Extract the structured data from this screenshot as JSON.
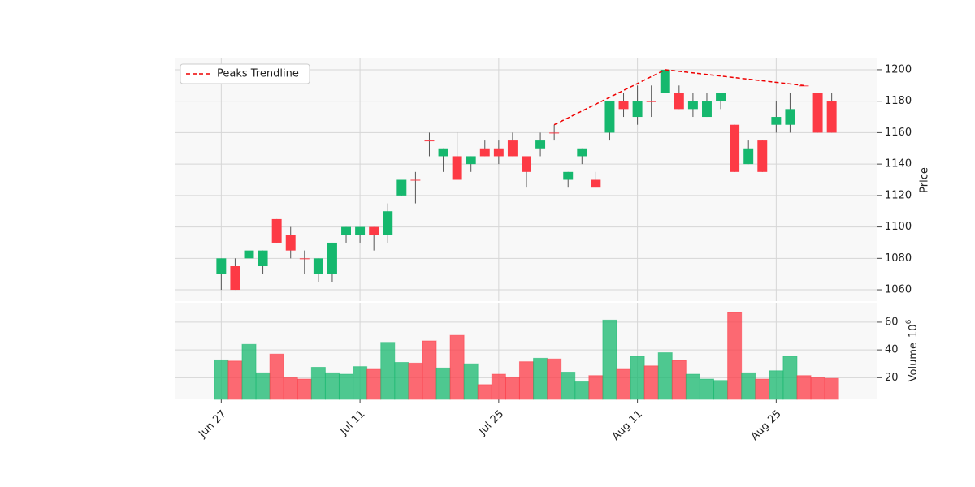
{
  "chart_data": {
    "type": "candlestick",
    "categories": [
      "Jun 27",
      null,
      null,
      null,
      null,
      null,
      null,
      null,
      null,
      null,
      "Jul 11",
      null,
      null,
      null,
      null,
      null,
      null,
      null,
      null,
      null,
      "Jul 25",
      null,
      null,
      null,
      null,
      null,
      null,
      null,
      null,
      null,
      "Aug 11",
      null,
      null,
      null,
      null,
      null,
      null,
      null,
      null,
      null,
      "Aug 25",
      null,
      null,
      null,
      null
    ],
    "open": [
      1070,
      1075,
      1080,
      1075,
      1105,
      1095,
      1080,
      1070,
      1070,
      1095,
      1095,
      1100,
      1095,
      1120,
      1130,
      1155,
      1145,
      1145,
      1140,
      1150,
      1150,
      1155,
      1145,
      1150,
      1160,
      1130,
      1145,
      1130,
      1160,
      1180,
      1170,
      1180,
      1185,
      1185,
      1175,
      1170,
      1180,
      1165,
      1140,
      1155,
      1165,
      1165,
      1190,
      1185,
      1180
    ],
    "high": [
      1080,
      1080,
      1095,
      1085,
      1105,
      1100,
      1085,
      1080,
      1090,
      1100,
      1100,
      1100,
      1115,
      1130,
      1135,
      1160,
      1150,
      1160,
      1145,
      1155,
      1155,
      1160,
      1145,
      1160,
      1165,
      1135,
      1150,
      1135,
      1180,
      1185,
      1190,
      1190,
      1200,
      1190,
      1185,
      1185,
      1185,
      1165,
      1155,
      1155,
      1180,
      1185,
      1195,
      1185,
      1185
    ],
    "low": [
      1060,
      1060,
      1075,
      1070,
      1090,
      1080,
      1070,
      1065,
      1065,
      1090,
      1090,
      1085,
      1090,
      1120,
      1115,
      1145,
      1135,
      1130,
      1135,
      1145,
      1140,
      1145,
      1125,
      1145,
      1155,
      1125,
      1140,
      1125,
      1155,
      1170,
      1165,
      1170,
      1185,
      1175,
      1170,
      1170,
      1175,
      1135,
      1140,
      1135,
      1160,
      1160,
      1180,
      1160,
      1160
    ],
    "close": [
      1080,
      1060,
      1085,
      1085,
      1090,
      1085,
      1080,
      1080,
      1090,
      1100,
      1100,
      1095,
      1110,
      1130,
      1130,
      1155,
      1150,
      1130,
      1145,
      1145,
      1145,
      1145,
      1135,
      1155,
      1160,
      1135,
      1150,
      1125,
      1180,
      1175,
      1180,
      1180,
      1200,
      1175,
      1180,
      1180,
      1185,
      1135,
      1150,
      1135,
      1170,
      1175,
      1190,
      1160,
      1160
    ],
    "volume": [
      32.8,
      32,
      44,
      23.5,
      37,
      20,
      19,
      27.5,
      23.5,
      22.5,
      28,
      26,
      45.5,
      31,
      30.5,
      46.5,
      27,
      50.5,
      30,
      15,
      22.5,
      20.5,
      31.5,
      34,
      33.5,
      24,
      17,
      21.5,
      61.5,
      26,
      35.5,
      28.5,
      38,
      32.5,
      22.5,
      19,
      18,
      67,
      23.5,
      19,
      25,
      35.5,
      21.5,
      20,
      19.5
    ],
    "up_color": "#16b86e",
    "down_color": "#fd3a45",
    "xlim": [
      -3.3,
      47.3
    ],
    "ylim": [
      1052.8,
      1207.2
    ],
    "yticks": [
      1060,
      1080,
      1100,
      1120,
      1140,
      1160,
      1180,
      1200
    ],
    "ylabel": "Price",
    "volume_ylim": [
      4.4,
      74
    ],
    "volume_yticks": [
      20,
      40,
      60
    ],
    "volume_label": "Volume",
    "volume_scale_base": "10",
    "volume_scale_exponent": "6",
    "trendline": {
      "name": "Peaks Trendline",
      "color": "#ee0000",
      "x": [
        24,
        32,
        42
      ],
      "values": [
        1165,
        1200,
        1190
      ]
    },
    "legend": "upper left",
    "grid": true
  }
}
